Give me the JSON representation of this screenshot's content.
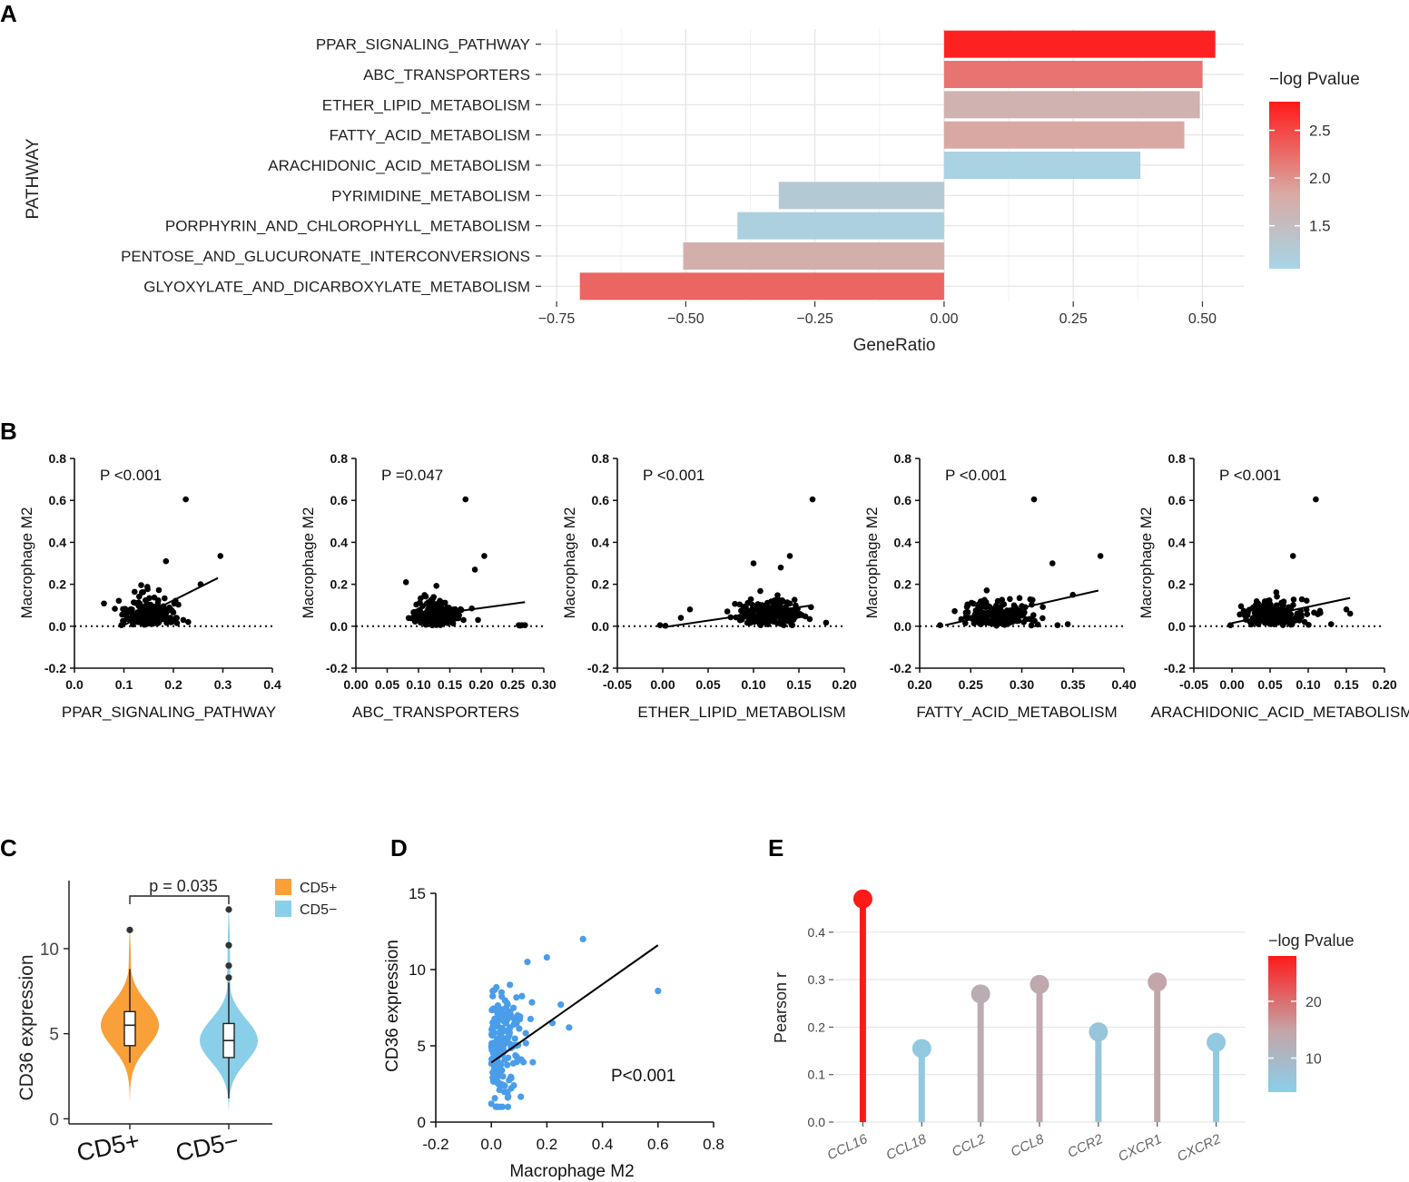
{
  "figure": {
    "panel_letters": [
      "A",
      "B",
      "C",
      "D",
      "E"
    ]
  },
  "chart_data": [
    {
      "panel": "A",
      "type": "bar",
      "orientation": "horizontal",
      "ylabel": "PATHWAY",
      "xlabel": "GeneRatio",
      "xlim": [
        -0.78,
        0.58
      ],
      "xticks": [
        -0.75,
        -0.5,
        -0.25,
        0.0,
        0.25,
        0.5
      ],
      "xtick_labels": [
        "−0.75",
        "−0.50",
        "−0.25",
        "0.00",
        "0.25",
        "0.50"
      ],
      "categories": [
        "PPAR_SIGNALING_PATHWAY",
        "ABC_TRANSPORTERS",
        "ETHER_LIPID_METABOLISM",
        "FATTY_ACID_METABOLISM",
        "ARACHIDONIC_ACID_METABOLISM",
        "PYRIMIDINE_METABOLISM",
        "PORPHYRIN_AND_CHLOROPHYLL_METABOLISM",
        "PENTOSE_AND_GLUCURONATE_INTERCONVERSIONS",
        "GLYOXYLATE_AND_DICARBOXYLATE_METABOLISM"
      ],
      "values": [
        0.525,
        0.5,
        0.495,
        0.465,
        0.38,
        -0.32,
        -0.4,
        -0.505,
        -0.705
      ],
      "neg_log_p": [
        2.75,
        2.2,
        1.7,
        1.85,
        1.1,
        1.25,
        1.15,
        1.75,
        2.3
      ],
      "legend": {
        "title": "−log Pvalue",
        "ticks": [
          1.5,
          2.0,
          2.5
        ],
        "tick_labels": [
          "1.5",
          "2.0",
          "2.5"
        ],
        "range": [
          1.05,
          2.8
        ],
        "low_color": "#a6d5e6",
        "high_color": "#ff1a1a"
      },
      "grid": true
    },
    {
      "panel": "B1",
      "type": "scatter",
      "ylabel": "Macrophage M2",
      "xlabel": "PPAR_SIGNALING_PATHWAY",
      "xlim": [
        0.0,
        0.4
      ],
      "ylim": [
        -0.2,
        0.8
      ],
      "xticks": [
        "0.0",
        "0.1",
        "0.2",
        "0.3",
        "0.4"
      ],
      "yticks": [
        "-0.2",
        "0.0",
        "0.2",
        "0.4",
        "0.6",
        "0.8"
      ],
      "annotation": "P <0.001",
      "trend": {
        "x0": 0.1,
        "y0": 0.005,
        "x1": 0.29,
        "y1": 0.23
      },
      "outliers": [
        [
          0.225,
          0.605
        ],
        [
          0.295,
          0.335
        ],
        [
          0.255,
          0.2
        ],
        [
          0.23,
          0.02
        ],
        [
          0.22,
          0.03
        ],
        [
          0.185,
          0.31
        ],
        [
          0.095,
          0.005
        ],
        [
          0.105,
          0.06
        ]
      ],
      "point_cloud": {
        "x_center": 0.15,
        "x_spread": 0.045,
        "y_center": 0.05,
        "y_spread": 0.07,
        "n": 190
      }
    },
    {
      "panel": "B2",
      "type": "scatter",
      "ylabel": "Macrophage M2",
      "xlabel": "ABC_TRANSPORTERS",
      "xlim": [
        0.0,
        0.3
      ],
      "ylim": [
        -0.2,
        0.8
      ],
      "xticks": [
        "0.00",
        "0.05",
        "0.10",
        "0.15",
        "0.20",
        "0.25",
        "0.30"
      ],
      "yticks": [
        "-0.2",
        "0.0",
        "0.2",
        "0.4",
        "0.6",
        "0.8"
      ],
      "annotation": "P =0.047",
      "trend": {
        "x0": 0.085,
        "y0": 0.04,
        "x1": 0.27,
        "y1": 0.115
      },
      "outliers": [
        [
          0.175,
          0.605
        ],
        [
          0.205,
          0.335
        ],
        [
          0.19,
          0.27
        ],
        [
          0.26,
          0.005
        ],
        [
          0.265,
          0.005
        ],
        [
          0.27,
          0.005
        ],
        [
          0.262,
          0.003
        ],
        [
          0.185,
          0.085
        ],
        [
          0.195,
          0.03
        ],
        [
          0.08,
          0.21
        ]
      ],
      "point_cloud": {
        "x_center": 0.125,
        "x_spread": 0.03,
        "y_center": 0.05,
        "y_spread": 0.06,
        "n": 200
      }
    },
    {
      "panel": "B3",
      "type": "scatter",
      "ylabel": "Macrophage M2",
      "xlabel": "ETHER_LIPID_METABOLISM",
      "xlim": [
        -0.05,
        0.2
      ],
      "ylim": [
        -0.2,
        0.8
      ],
      "xticks": [
        "-0.05",
        "0.00",
        "0.05",
        "0.10",
        "0.15",
        "0.20"
      ],
      "yticks": [
        "-0.2",
        "0.0",
        "0.2",
        "0.4",
        "0.6",
        "0.8"
      ],
      "annotation": "P <0.001",
      "trend": {
        "x0": 0.0,
        "y0": -0.005,
        "x1": 0.165,
        "y1": 0.1
      },
      "outliers": [
        [
          0.165,
          0.605
        ],
        [
          0.14,
          0.335
        ],
        [
          0.1,
          0.3
        ],
        [
          0.13,
          0.28
        ],
        [
          -0.003,
          0.005
        ],
        [
          0.003,
          0.002
        ],
        [
          0.02,
          0.04
        ],
        [
          0.03,
          0.08
        ]
      ],
      "point_cloud": {
        "x_center": 0.115,
        "x_spread": 0.03,
        "y_center": 0.06,
        "y_spread": 0.06,
        "n": 200
      }
    },
    {
      "panel": "B4",
      "type": "scatter",
      "ylabel": "Macrophage M2",
      "xlabel": "FATTY_ACID_METABOLISM",
      "xlim": [
        0.2,
        0.4
      ],
      "ylim": [
        -0.2,
        0.8
      ],
      "xticks": [
        "0.20",
        "0.25",
        "0.30",
        "0.35",
        "0.40"
      ],
      "yticks": [
        "-0.2",
        "0.0",
        "0.2",
        "0.4",
        "0.6",
        "0.8"
      ],
      "annotation": "P <0.001",
      "trend": {
        "x0": 0.225,
        "y0": 0.005,
        "x1": 0.375,
        "y1": 0.17
      },
      "outliers": [
        [
          0.312,
          0.605
        ],
        [
          0.377,
          0.335
        ],
        [
          0.35,
          0.15
        ],
        [
          0.33,
          0.3
        ],
        [
          0.22,
          0.005
        ],
        [
          0.335,
          0.005
        ],
        [
          0.345,
          0.01
        ]
      ],
      "point_cloud": {
        "x_center": 0.275,
        "x_spread": 0.028,
        "y_center": 0.05,
        "y_spread": 0.065,
        "n": 210
      }
    },
    {
      "panel": "B5",
      "type": "scatter",
      "ylabel": "Macrophage M2",
      "xlabel": "ARACHIDONIC_ACID_METABOLISM",
      "xlim": [
        -0.05,
        0.2
      ],
      "ylim": [
        -0.2,
        0.8
      ],
      "xticks": [
        "-0.05",
        "0.00",
        "0.05",
        "0.10",
        "0.15",
        "0.20"
      ],
      "yticks": [
        "-0.2",
        "0.0",
        "0.2",
        "0.4",
        "0.6",
        "0.8"
      ],
      "annotation": "P <0.001",
      "trend": {
        "x0": 0.0,
        "y0": 0.015,
        "x1": 0.155,
        "y1": 0.135
      },
      "outliers": [
        [
          0.11,
          0.605
        ],
        [
          0.08,
          0.335
        ],
        [
          0.15,
          0.08
        ],
        [
          0.155,
          0.06
        ],
        [
          -0.002,
          0.005
        ],
        [
          0.13,
          0.01
        ]
      ],
      "point_cloud": {
        "x_center": 0.055,
        "x_spread": 0.035,
        "y_center": 0.06,
        "y_spread": 0.06,
        "n": 210
      }
    },
    {
      "panel": "C",
      "type": "violin",
      "ylabel": "CD36 expression",
      "categories": [
        "CD5+",
        "CD5−"
      ],
      "colors": [
        "#f9a039",
        "#89cfea"
      ],
      "ylim": [
        -0.3,
        14
      ],
      "yticks": [
        "0",
        "5",
        "10"
      ],
      "annotation": "p = 0.035",
      "legend": [
        {
          "label": "CD5+",
          "color": "#f9a039"
        },
        {
          "label": "CD5−",
          "color": "#89cfea"
        }
      ],
      "groups": [
        {
          "min": 3.3,
          "q1": 4.3,
          "median": 5.5,
          "q3": 6.3,
          "max": 8.8,
          "outliers": [
            11.1
          ],
          "violin_lo": 1.0,
          "violin_hi": 11.5,
          "peak": 5.5
        },
        {
          "min": 1.2,
          "q1": 3.6,
          "median": 4.6,
          "q3": 5.6,
          "max": 8.0,
          "outliers": [
            8.3,
            9.0,
            10.2,
            12.3
          ],
          "violin_lo": 0.5,
          "violin_hi": 12.8,
          "peak": 4.6
        }
      ]
    },
    {
      "panel": "D",
      "type": "scatter",
      "xlabel": "Macrophage M2",
      "ylabel": "CD36 expression",
      "xlim": [
        -0.2,
        0.8
      ],
      "ylim": [
        0,
        15
      ],
      "xticks": [
        "-0.2",
        "0.0",
        "0.2",
        "0.4",
        "0.6",
        "0.8"
      ],
      "yticks": [
        "0",
        "5",
        "10",
        "15"
      ],
      "annotation": "P<0.001",
      "point_color": "#4a9de9",
      "trend": {
        "x0": 0.0,
        "y0": 3.9,
        "x1": 0.6,
        "y1": 11.6
      },
      "outliers": [
        [
          0.33,
          12.0
        ],
        [
          0.6,
          8.6
        ],
        [
          0.2,
          10.8
        ],
        [
          0.13,
          10.5
        ],
        [
          0.25,
          7.7
        ],
        [
          0.22,
          6.5
        ],
        [
          0.28,
          6.2
        ],
        [
          0.0,
          1.2
        ],
        [
          0.02,
          1.0
        ],
        [
          0.005,
          8.6
        ]
      ],
      "point_cloud": {
        "x_center": 0.06,
        "x_spread": 0.06,
        "y_center": 4.4,
        "y_spread": 1.7,
        "n": 200
      }
    },
    {
      "panel": "E",
      "type": "lollipop",
      "ylabel": "Pearson r",
      "categories": [
        "CCL16",
        "CCL18",
        "CCL2",
        "CCL8",
        "CCR2",
        "CXCR1",
        "CXCR2"
      ],
      "values": [
        0.47,
        0.155,
        0.27,
        0.29,
        0.19,
        0.295,
        0.168
      ],
      "neg_log_p": [
        28,
        5.5,
        13,
        14,
        6.5,
        14.5,
        5.5
      ],
      "ylim": [
        0,
        0.48
      ],
      "yticks": [
        "0.0",
        "0.1",
        "0.2",
        "0.3",
        "0.4"
      ],
      "legend": {
        "title": "−log Pvalue",
        "ticks": [
          10,
          20
        ],
        "tick_labels": [
          "10",
          "20"
        ],
        "range": [
          4,
          28
        ],
        "low_color": "#89cfea",
        "high_color": "#ff1a1a"
      },
      "grid": true
    }
  ]
}
